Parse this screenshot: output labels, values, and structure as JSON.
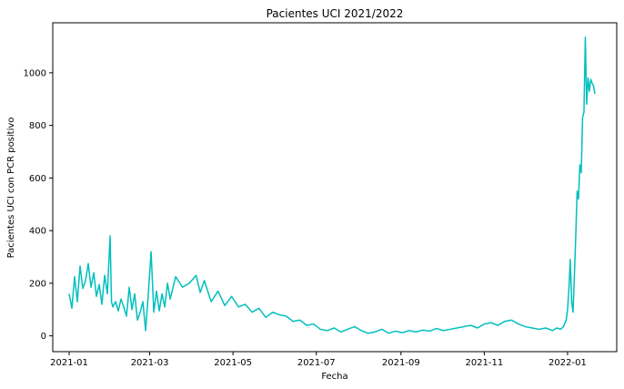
{
  "chart_data": {
    "type": "line",
    "title": "Pacientes UCI 2021/2022",
    "xlabel": "Fecha",
    "ylabel": "Pacientes UCI con PCR positivo",
    "x_ticks": [
      "2021-01",
      "2021-03",
      "2021-05",
      "2021-07",
      "2021-09",
      "2021-11",
      "2022-01"
    ],
    "y_ticks": [
      0,
      200,
      400,
      600,
      800,
      1000
    ],
    "xlim": [
      "2020-12-20",
      "2022-02-06"
    ],
    "ylim": [
      -60,
      1190
    ],
    "grid": false,
    "series": [
      {
        "color": "#00bfbf",
        "x": [
          "2021-01-01",
          "2021-01-03",
          "2021-01-05",
          "2021-01-07",
          "2021-01-09",
          "2021-01-11",
          "2021-01-13",
          "2021-01-15",
          "2021-01-17",
          "2021-01-19",
          "2021-01-21",
          "2021-01-23",
          "2021-01-25",
          "2021-01-27",
          "2021-01-29",
          "2021-01-31",
          "2021-02-01",
          "2021-02-02",
          "2021-02-04",
          "2021-02-06",
          "2021-02-08",
          "2021-02-10",
          "2021-02-12",
          "2021-02-14",
          "2021-02-16",
          "2021-02-18",
          "2021-02-20",
          "2021-02-22",
          "2021-02-24",
          "2021-02-26",
          "2021-02-28",
          "2021-03-02",
          "2021-03-04",
          "2021-03-06",
          "2021-03-08",
          "2021-03-10",
          "2021-03-12",
          "2021-03-14",
          "2021-03-16",
          "2021-03-20",
          "2021-03-25",
          "2021-03-30",
          "2021-04-04",
          "2021-04-07",
          "2021-04-10",
          "2021-04-15",
          "2021-04-20",
          "2021-04-25",
          "2021-04-30",
          "2021-05-05",
          "2021-05-10",
          "2021-05-15",
          "2021-05-20",
          "2021-05-25",
          "2021-05-30",
          "2021-06-04",
          "2021-06-09",
          "2021-06-14",
          "2021-06-19",
          "2021-06-24",
          "2021-06-29",
          "2021-07-04",
          "2021-07-09",
          "2021-07-14",
          "2021-07-19",
          "2021-07-24",
          "2021-07-29",
          "2021-08-03",
          "2021-08-08",
          "2021-08-13",
          "2021-08-18",
          "2021-08-23",
          "2021-08-28",
          "2021-09-02",
          "2021-09-07",
          "2021-09-12",
          "2021-09-17",
          "2021-09-22",
          "2021-09-27",
          "2021-10-02",
          "2021-10-07",
          "2021-10-12",
          "2021-10-17",
          "2021-10-22",
          "2021-10-27",
          "2021-11-01",
          "2021-11-06",
          "2021-11-11",
          "2021-11-16",
          "2021-11-21",
          "2021-11-26",
          "2021-12-01",
          "2021-12-06",
          "2021-12-11",
          "2021-12-16",
          "2021-12-21",
          "2021-12-24",
          "2021-12-27",
          "2021-12-29",
          "2021-12-31",
          "2022-01-01",
          "2022-01-02",
          "2022-01-03",
          "2022-01-04",
          "2022-01-05",
          "2022-01-06",
          "2022-01-07",
          "2022-01-08",
          "2022-01-09",
          "2022-01-10",
          "2022-01-11",
          "2022-01-12",
          "2022-01-13",
          "2022-01-14",
          "2022-01-15",
          "2022-01-16",
          "2022-01-17",
          "2022-01-18",
          "2022-01-19",
          "2022-01-20",
          "2022-01-21"
        ],
        "y": [
          160,
          105,
          225,
          130,
          265,
          180,
          210,
          275,
          185,
          240,
          150,
          195,
          120,
          230,
          160,
          380,
          130,
          110,
          130,
          95,
          140,
          110,
          75,
          185,
          100,
          160,
          60,
          90,
          130,
          20,
          160,
          320,
          90,
          170,
          95,
          160,
          110,
          200,
          140,
          225,
          185,
          200,
          230,
          165,
          210,
          130,
          170,
          115,
          150,
          110,
          120,
          90,
          105,
          70,
          90,
          80,
          75,
          55,
          60,
          40,
          45,
          25,
          20,
          30,
          15,
          25,
          35,
          20,
          10,
          15,
          25,
          10,
          18,
          12,
          20,
          15,
          22,
          18,
          28,
          20,
          25,
          30,
          35,
          40,
          30,
          45,
          50,
          40,
          55,
          60,
          45,
          35,
          30,
          25,
          30,
          20,
          30,
          25,
          35,
          60,
          100,
          180,
          290,
          130,
          90,
          230,
          380,
          550,
          520,
          650,
          620,
          830,
          850,
          1135,
          880,
          980,
          930,
          975,
          960,
          950,
          920
        ]
      }
    ]
  }
}
